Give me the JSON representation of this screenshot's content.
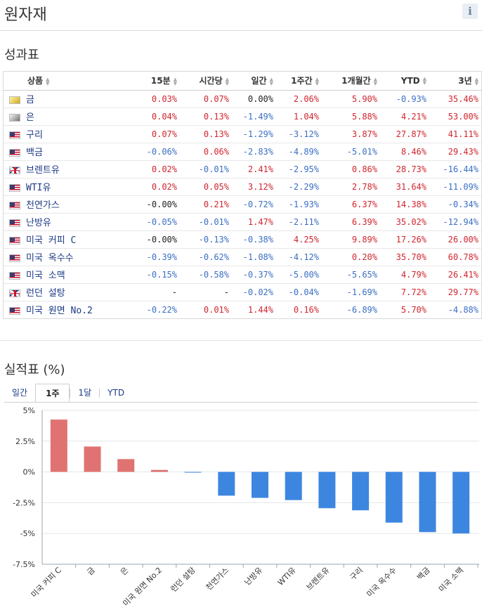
{
  "page": {
    "title": "원자재",
    "info_label": "i"
  },
  "performance_table": {
    "title": "성과표",
    "columns": [
      "상품",
      "15분",
      "시간당",
      "일간",
      "1주간",
      "1개월간",
      "YTD",
      "3년"
    ],
    "rows": [
      {
        "flag": "gold-bar-icon",
        "name": "금",
        "values": [
          "0.03%",
          "0.07%",
          "0.00%",
          "2.06%",
          "5.90%",
          "-0.93%",
          "35.46%"
        ]
      },
      {
        "flag": "silver-bar-icon",
        "name": "은",
        "values": [
          "0.04%",
          "0.13%",
          "-1.49%",
          "1.04%",
          "5.88%",
          "4.21%",
          "53.00%"
        ]
      },
      {
        "flag": "us-flag-icon",
        "name": "구리",
        "values": [
          "0.07%",
          "0.13%",
          "-1.29%",
          "-3.12%",
          "3.87%",
          "27.87%",
          "41.11%"
        ]
      },
      {
        "flag": "us-flag-icon",
        "name": "백금",
        "values": [
          "-0.06%",
          "0.06%",
          "-2.83%",
          "-4.89%",
          "-5.01%",
          "8.46%",
          "29.43%"
        ]
      },
      {
        "flag": "uk-flag-icon",
        "name": "브렌트유",
        "values": [
          "0.02%",
          "-0.01%",
          "2.41%",
          "-2.95%",
          "0.86%",
          "28.73%",
          "-16.44%"
        ]
      },
      {
        "flag": "us-flag-icon",
        "name": "WTI유",
        "values": [
          "0.02%",
          "0.05%",
          "3.12%",
          "-2.29%",
          "2.78%",
          "31.64%",
          "-11.09%"
        ]
      },
      {
        "flag": "us-flag-icon",
        "name": "천연가스",
        "values": [
          "-0.00%",
          "0.21%",
          "-0.72%",
          "-1.93%",
          "6.37%",
          "14.38%",
          "-0.34%"
        ]
      },
      {
        "flag": "us-flag-icon",
        "name": "난방유",
        "values": [
          "-0.05%",
          "-0.01%",
          "1.47%",
          "-2.11%",
          "6.39%",
          "35.02%",
          "-12.94%"
        ]
      },
      {
        "flag": "us-flag-icon",
        "name": "미국 커피 C",
        "values": [
          "-0.00%",
          "-0.13%",
          "-0.38%",
          "4.25%",
          "9.89%",
          "17.26%",
          "26.00%"
        ]
      },
      {
        "flag": "us-flag-icon",
        "name": "미국 옥수수",
        "values": [
          "-0.39%",
          "-0.62%",
          "-1.08%",
          "-4.12%",
          "0.20%",
          "35.70%",
          "60.78%"
        ]
      },
      {
        "flag": "us-flag-icon",
        "name": "미국 소맥",
        "values": [
          "-0.15%",
          "-0.58%",
          "-0.37%",
          "-5.00%",
          "-5.65%",
          "4.79%",
          "26.41%"
        ]
      },
      {
        "flag": "uk-flag-icon",
        "name": "런던 설탕",
        "values": [
          "-",
          "-",
          "-0.02%",
          "-0.04%",
          "-1.69%",
          "7.72%",
          "29.77%"
        ]
      },
      {
        "flag": "us-flag-icon",
        "name": "미국 원면 No.2",
        "values": [
          "-0.22%",
          "0.01%",
          "1.44%",
          "0.16%",
          "-6.89%",
          "5.70%",
          "-4.88%"
        ]
      }
    ]
  },
  "chart_section": {
    "title": "실적표 (%)",
    "tabs": [
      "일간",
      "1주",
      "1달",
      "YTD"
    ],
    "active_tab": "1주"
  },
  "colors": {
    "positive": "#d0262f",
    "negative": "#3a6fc4",
    "bar_positive": "#e07371",
    "bar_negative": "#3d86e0"
  },
  "chart_data": {
    "type": "bar",
    "categories": [
      "미국 커피 C",
      "금",
      "은",
      "미국 원면 No.2",
      "런던 설탕",
      "천연가스",
      "난방유",
      "WTI유",
      "브렌트유",
      "구리",
      "미국 옥수수",
      "백금",
      "미국 소맥"
    ],
    "values": [
      4.25,
      2.06,
      1.04,
      0.16,
      -0.04,
      -1.93,
      -2.11,
      -2.29,
      -2.95,
      -3.12,
      -4.12,
      -4.89,
      -5.0
    ],
    "yticks": [
      5,
      2.5,
      0,
      -2.5,
      -5,
      -7.5
    ],
    "ytick_labels": [
      "5%",
      "2.5%",
      "0%",
      "-2.5%",
      "-5%",
      "-7.5%"
    ],
    "ylim": [
      -7.5,
      5
    ],
    "title": "",
    "xlabel": "",
    "ylabel": "",
    "grid": true
  }
}
